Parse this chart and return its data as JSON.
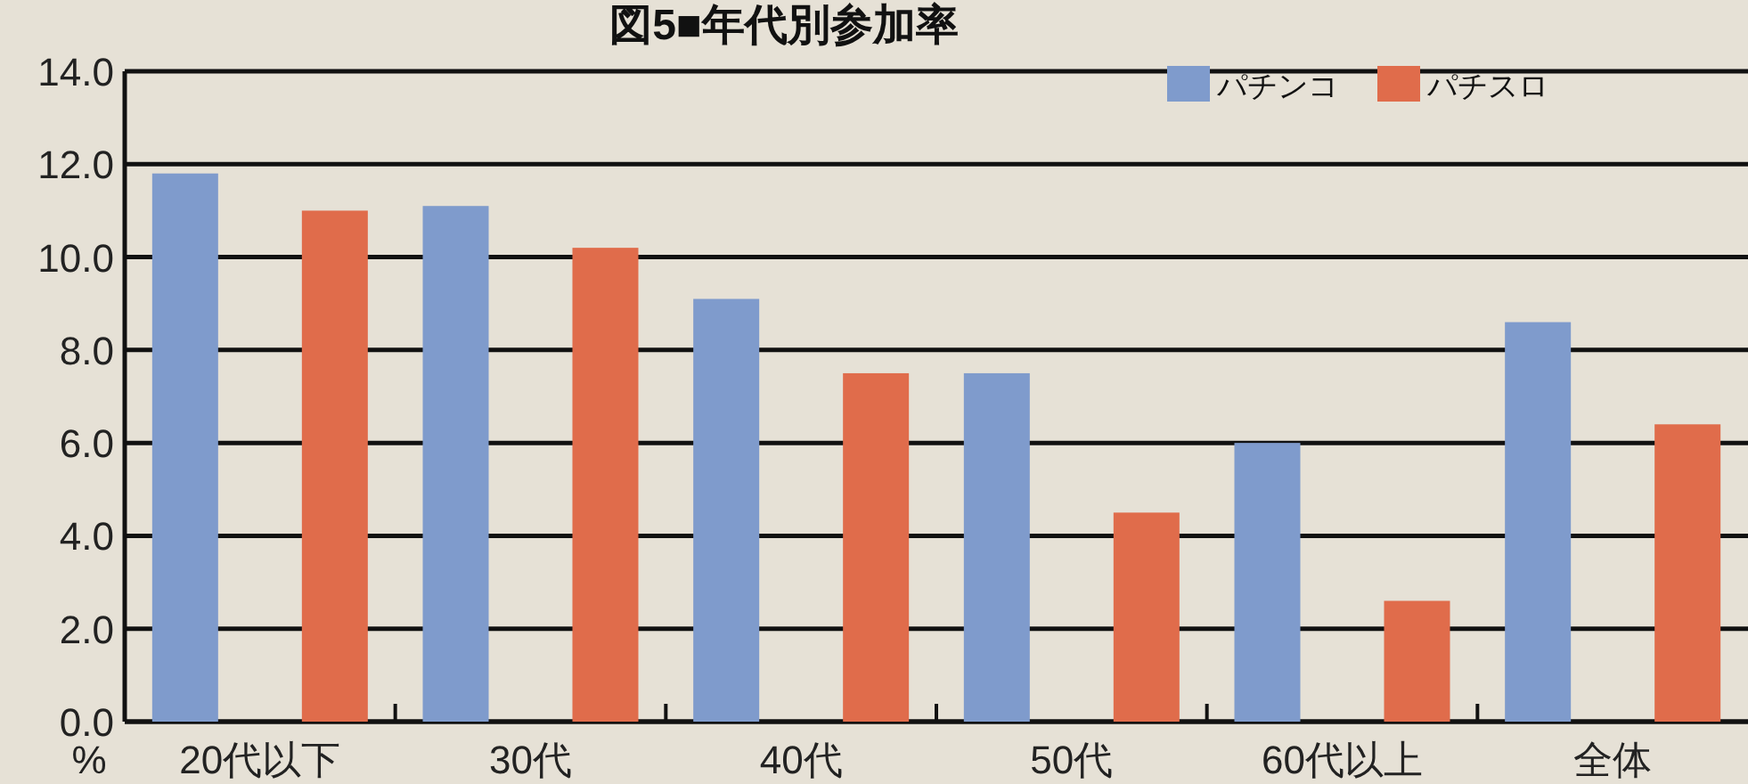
{
  "chart_data": {
    "type": "bar",
    "title": "図5■年代別参加率",
    "ylabel": "%",
    "categories": [
      "20代以下",
      "30代",
      "40代",
      "50代",
      "60代以上",
      "全体"
    ],
    "series": [
      {
        "name": "パチンコ",
        "color": "#7f9bcc",
        "values": [
          11.8,
          11.1,
          9.1,
          7.5,
          6.0,
          8.6
        ]
      },
      {
        "name": "パチスロ",
        "color": "#e06c4b",
        "values": [
          11.0,
          10.2,
          7.5,
          4.5,
          2.6,
          6.4
        ]
      }
    ],
    "ylim": [
      0,
      14
    ],
    "yticks": [
      {
        "value": 0,
        "label": "0.0"
      },
      {
        "value": 2,
        "label": "2.0"
      },
      {
        "value": 4,
        "label": "4.0"
      },
      {
        "value": 6,
        "label": "6.0"
      },
      {
        "value": 8,
        "label": "8.0"
      },
      {
        "value": 10,
        "label": "10.0"
      },
      {
        "value": 12,
        "label": "12.0"
      },
      {
        "value": 14,
        "label": "14.0"
      }
    ],
    "grid": "y",
    "legend": "top right"
  }
}
